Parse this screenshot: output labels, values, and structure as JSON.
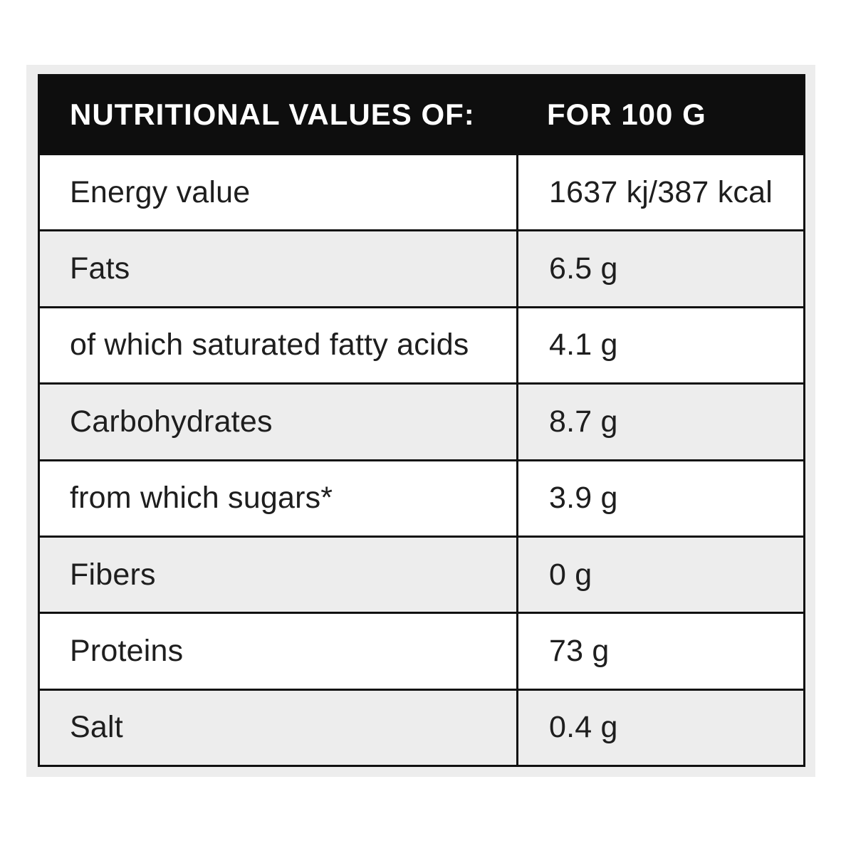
{
  "table": {
    "header": {
      "label_column": "NUTRITIONAL VALUES OF:",
      "value_column": "FOR 100 G"
    },
    "rows": [
      {
        "label": "Energy value",
        "value": "1637 kj/387 kcal"
      },
      {
        "label": "Fats",
        "value": "6.5 g"
      },
      {
        "label": "of which saturated fatty acids",
        "value": "4.1 g"
      },
      {
        "label": "Carbohydrates",
        "value": "8.7 g"
      },
      {
        "label": "from which sugars*",
        "value": "3.9 g"
      },
      {
        "label": "Fibers",
        "value": "0 g"
      },
      {
        "label": "Proteins",
        "value": "73 g"
      },
      {
        "label": "Salt",
        "value": "0.4 g"
      }
    ]
  },
  "colors": {
    "header_bg": "#0e0e0e",
    "header_text": "#ffffff",
    "border": "#101010",
    "row_alt_bg": "#ededed",
    "row_plain_bg": "#ffffff",
    "panel_bg": "#ededed",
    "body_text": "#1e1e1e",
    "page_bg": "#ffffff"
  }
}
